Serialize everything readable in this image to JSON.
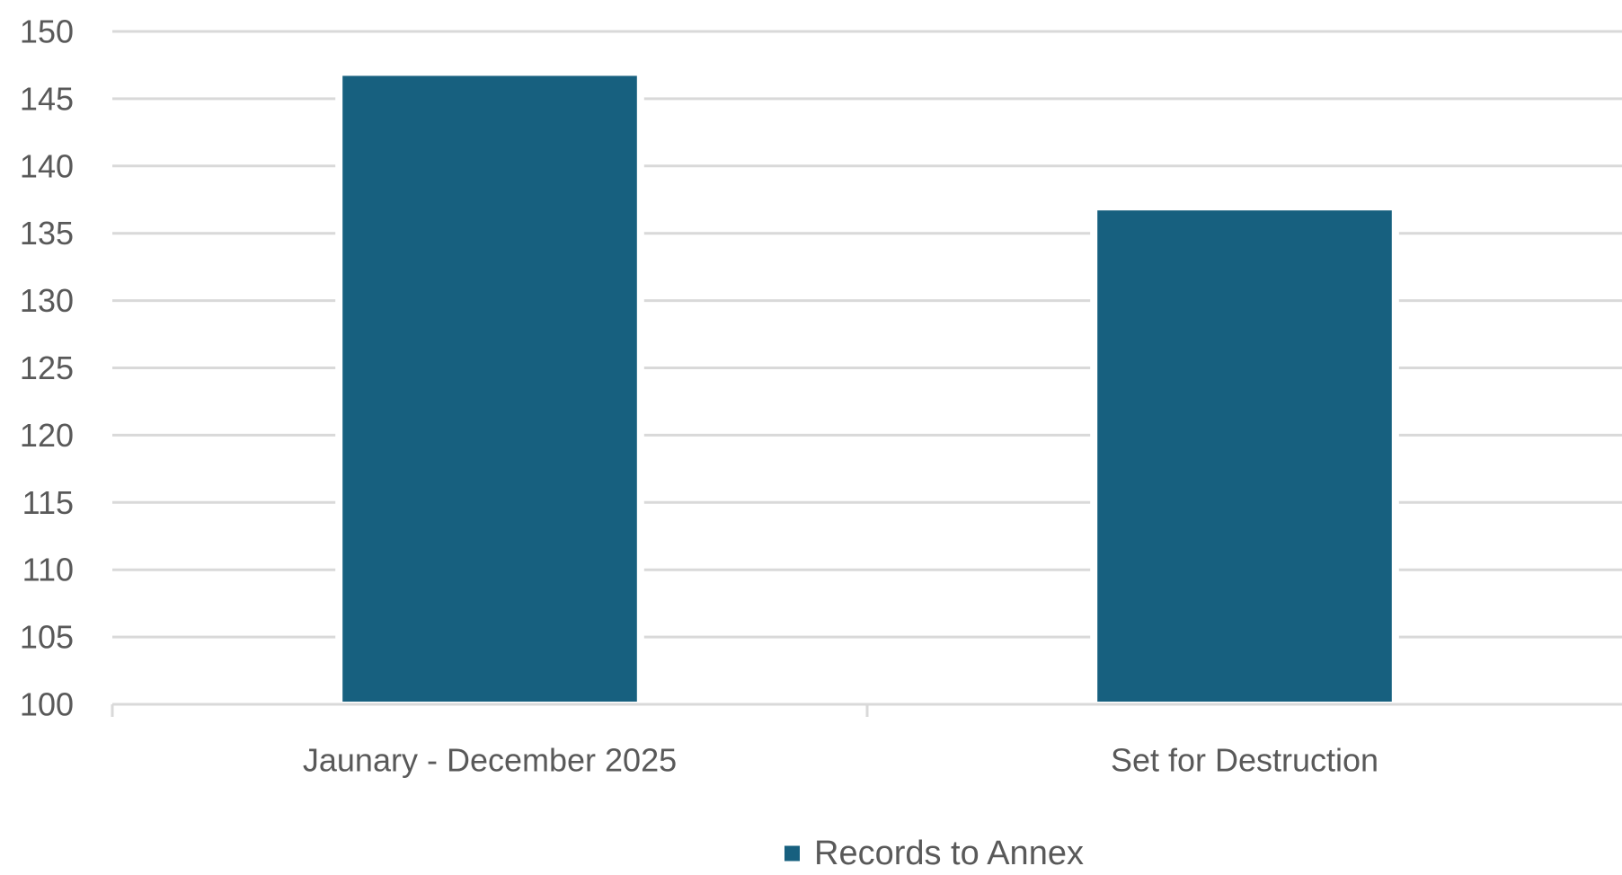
{
  "chart_data": {
    "type": "bar",
    "title": "",
    "xlabel": "",
    "ylabel": "",
    "categories": [
      "Jaunary - December 2025",
      "Set for Destruction"
    ],
    "series": [
      {
        "name": "Records to Annex",
        "values": [
          146.7,
          136.7
        ],
        "color": "#17607F"
      }
    ],
    "ylim": [
      100,
      150
    ],
    "yticks": [
      100,
      105,
      110,
      115,
      120,
      125,
      130,
      135,
      140,
      145,
      150
    ],
    "grid": true,
    "legend": "bottom-center",
    "colors": {
      "gridline": "#D9D9D9",
      "axis": "#D9D9D9",
      "text": "#595959"
    }
  }
}
